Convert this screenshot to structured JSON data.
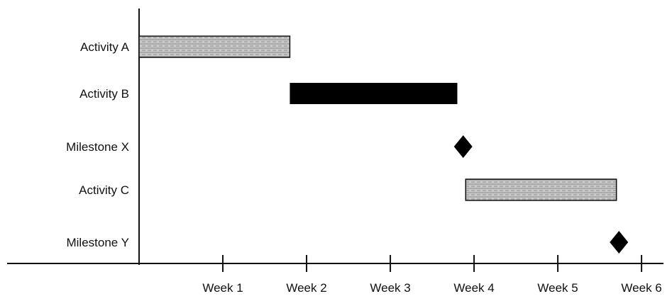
{
  "chart_data": {
    "type": "gantt",
    "title": "",
    "xlabel": "",
    "ylabel": "",
    "x_axis": {
      "ticks": [
        1,
        2,
        3,
        4,
        5,
        6
      ],
      "tick_labels": [
        "Week 1",
        "Week 2",
        "Week 3",
        "Week 4",
        "Week 5",
        "Week 6"
      ]
    },
    "rows": [
      {
        "label": "Activity A",
        "kind": "bar",
        "start": 0.0,
        "end": 1.8,
        "fill": "pattern"
      },
      {
        "label": "Activity B",
        "kind": "bar",
        "start": 1.8,
        "end": 3.8,
        "fill": "solid"
      },
      {
        "label": "Milestone X",
        "kind": "milestone",
        "at": 3.87
      },
      {
        "label": "Activity C",
        "kind": "bar",
        "start": 3.9,
        "end": 5.7,
        "fill": "pattern"
      },
      {
        "label": "Milestone Y",
        "kind": "milestone",
        "at": 5.73
      }
    ],
    "xlim": [
      0,
      6.05
    ],
    "colors": {
      "solid": "#000000",
      "pattern_base": "#c9c9c9",
      "pattern_line": "#8a8a8a",
      "axis": "#111111",
      "text": "#111111"
    },
    "grid": false,
    "legend": "none"
  }
}
